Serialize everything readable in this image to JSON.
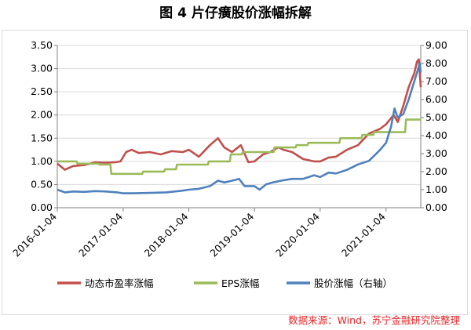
{
  "title": "图 4  片仔癀股价涨幅拆解",
  "source": "数据来源：Wind，苏宁金融研究院整理",
  "chart_data": {
    "type": "line",
    "x_ticks": [
      "2016-01-04",
      "2017-01-04",
      "2018-01-04",
      "2019-01-04",
      "2020-01-04",
      "2021-01-04"
    ],
    "xlim": [
      "2016-01-04",
      "2021-07-16"
    ],
    "y_left": {
      "ticks": [
        "0.00",
        "0.50",
        "1.00",
        "1.50",
        "2.00",
        "2.50",
        "3.00",
        "3.50"
      ],
      "ylim": [
        0,
        3.5
      ]
    },
    "y_right": {
      "ticks": [
        "0.00",
        "1.00",
        "2.00",
        "3.00",
        "4.00",
        "5.00",
        "6.00",
        "7.00",
        "8.00",
        "9.00"
      ],
      "ylim": [
        0,
        9
      ]
    },
    "grid": "horizontal",
    "legend": "bottom",
    "series": [
      {
        "name": "动态市盈率涨幅",
        "axis": "left",
        "color": "#c0504d",
        "points": [
          [
            "2016-01-04",
            0.95
          ],
          [
            "2016-02-15",
            0.82
          ],
          [
            "2016-04-01",
            0.9
          ],
          [
            "2016-06-01",
            0.92
          ],
          [
            "2016-08-01",
            0.98
          ],
          [
            "2016-10-01",
            0.97
          ],
          [
            "2016-11-20",
            0.98
          ],
          [
            "2016-12-20",
            1.0
          ],
          [
            "2017-01-20",
            1.2
          ],
          [
            "2017-02-20",
            1.25
          ],
          [
            "2017-04-01",
            1.18
          ],
          [
            "2017-06-01",
            1.2
          ],
          [
            "2017-08-01",
            1.15
          ],
          [
            "2017-10-01",
            1.22
          ],
          [
            "2017-12-01",
            1.2
          ],
          [
            "2018-01-04",
            1.25
          ],
          [
            "2018-03-01",
            1.1
          ],
          [
            "2018-05-01",
            1.35
          ],
          [
            "2018-06-15",
            1.5
          ],
          [
            "2018-07-20",
            1.3
          ],
          [
            "2018-09-01",
            1.2
          ],
          [
            "2018-10-20",
            1.35
          ],
          [
            "2018-12-01",
            0.98
          ],
          [
            "2019-01-04",
            1.0
          ],
          [
            "2019-02-20",
            1.15
          ],
          [
            "2019-04-01",
            1.2
          ],
          [
            "2019-05-15",
            1.3
          ],
          [
            "2019-06-15",
            1.25
          ],
          [
            "2019-08-01",
            1.2
          ],
          [
            "2019-10-01",
            1.05
          ],
          [
            "2019-12-01",
            1.0
          ],
          [
            "2020-01-04",
            1.0
          ],
          [
            "2020-02-20",
            1.08
          ],
          [
            "2020-04-01",
            1.1
          ],
          [
            "2020-06-01",
            1.25
          ],
          [
            "2020-08-01",
            1.35
          ],
          [
            "2020-10-01",
            1.6
          ],
          [
            "2020-12-01",
            1.7
          ],
          [
            "2021-01-04",
            1.8
          ],
          [
            "2021-02-15",
            2.0
          ],
          [
            "2021-03-10",
            1.85
          ],
          [
            "2021-04-10",
            2.2
          ],
          [
            "2021-05-10",
            2.6
          ],
          [
            "2021-06-10",
            2.9
          ],
          [
            "2021-06-25",
            3.15
          ],
          [
            "2021-07-05",
            3.2
          ],
          [
            "2021-07-16",
            2.6
          ]
        ]
      },
      {
        "name": "EPS涨幅",
        "axis": "left",
        "color": "#9bbb59",
        "points": [
          [
            "2016-01-04",
            1.0
          ],
          [
            "2016-04-20",
            1.0
          ],
          [
            "2016-04-25",
            0.95
          ],
          [
            "2016-08-20",
            0.95
          ],
          [
            "2016-08-25",
            0.93
          ],
          [
            "2016-10-25",
            0.93
          ],
          [
            "2016-10-30",
            0.73
          ],
          [
            "2017-04-20",
            0.73
          ],
          [
            "2017-04-25",
            0.78
          ],
          [
            "2017-08-20",
            0.78
          ],
          [
            "2017-08-25",
            0.83
          ],
          [
            "2017-10-25",
            0.83
          ],
          [
            "2017-10-30",
            0.93
          ],
          [
            "2018-04-20",
            0.93
          ],
          [
            "2018-04-25",
            1.0
          ],
          [
            "2018-08-20",
            1.0
          ],
          [
            "2018-08-25",
            1.15
          ],
          [
            "2018-10-25",
            1.15
          ],
          [
            "2018-10-30",
            1.2
          ],
          [
            "2019-04-20",
            1.2
          ],
          [
            "2019-04-25",
            1.3
          ],
          [
            "2019-08-20",
            1.3
          ],
          [
            "2019-08-25",
            1.35
          ],
          [
            "2019-10-25",
            1.35
          ],
          [
            "2019-10-30",
            1.4
          ],
          [
            "2020-04-20",
            1.4
          ],
          [
            "2020-04-25",
            1.5
          ],
          [
            "2020-08-20",
            1.5
          ],
          [
            "2020-08-25",
            1.57
          ],
          [
            "2020-10-25",
            1.57
          ],
          [
            "2020-10-30",
            1.63
          ],
          [
            "2021-04-20",
            1.63
          ],
          [
            "2021-04-25",
            1.9
          ],
          [
            "2021-07-16",
            1.9
          ]
        ]
      },
      {
        "name": "股价涨幅（右轴）",
        "axis": "right",
        "color": "#4f81bd",
        "points": [
          [
            "2016-01-04",
            1.0
          ],
          [
            "2016-02-15",
            0.85
          ],
          [
            "2016-04-01",
            0.9
          ],
          [
            "2016-06-01",
            0.88
          ],
          [
            "2016-08-01",
            0.92
          ],
          [
            "2016-10-01",
            0.9
          ],
          [
            "2016-12-01",
            0.85
          ],
          [
            "2017-01-04",
            0.8
          ],
          [
            "2017-03-01",
            0.8
          ],
          [
            "2017-06-01",
            0.82
          ],
          [
            "2017-09-01",
            0.85
          ],
          [
            "2017-12-01",
            0.95
          ],
          [
            "2018-01-04",
            1.0
          ],
          [
            "2018-03-01",
            1.05
          ],
          [
            "2018-05-01",
            1.2
          ],
          [
            "2018-06-15",
            1.5
          ],
          [
            "2018-07-20",
            1.4
          ],
          [
            "2018-09-01",
            1.5
          ],
          [
            "2018-10-10",
            1.6
          ],
          [
            "2018-11-10",
            1.2
          ],
          [
            "2019-01-04",
            1.2
          ],
          [
            "2019-02-01",
            1.0
          ],
          [
            "2019-03-10",
            1.3
          ],
          [
            "2019-04-15",
            1.4
          ],
          [
            "2019-06-01",
            1.5
          ],
          [
            "2019-08-01",
            1.6
          ],
          [
            "2019-10-01",
            1.6
          ],
          [
            "2019-12-01",
            1.8
          ],
          [
            "2020-01-04",
            1.7
          ],
          [
            "2020-02-20",
            1.95
          ],
          [
            "2020-04-01",
            1.9
          ],
          [
            "2020-06-01",
            2.1
          ],
          [
            "2020-08-01",
            2.4
          ],
          [
            "2020-10-01",
            2.6
          ],
          [
            "2020-12-01",
            3.2
          ],
          [
            "2021-01-04",
            3.6
          ],
          [
            "2021-02-01",
            4.5
          ],
          [
            "2021-02-20",
            5.5
          ],
          [
            "2021-03-10",
            5.0
          ],
          [
            "2021-04-10",
            5.2
          ],
          [
            "2021-05-10",
            6.0
          ],
          [
            "2021-06-10",
            7.0
          ],
          [
            "2021-07-01",
            7.7
          ],
          [
            "2021-07-10",
            8.0
          ],
          [
            "2021-07-16",
            7.5
          ]
        ]
      }
    ]
  }
}
